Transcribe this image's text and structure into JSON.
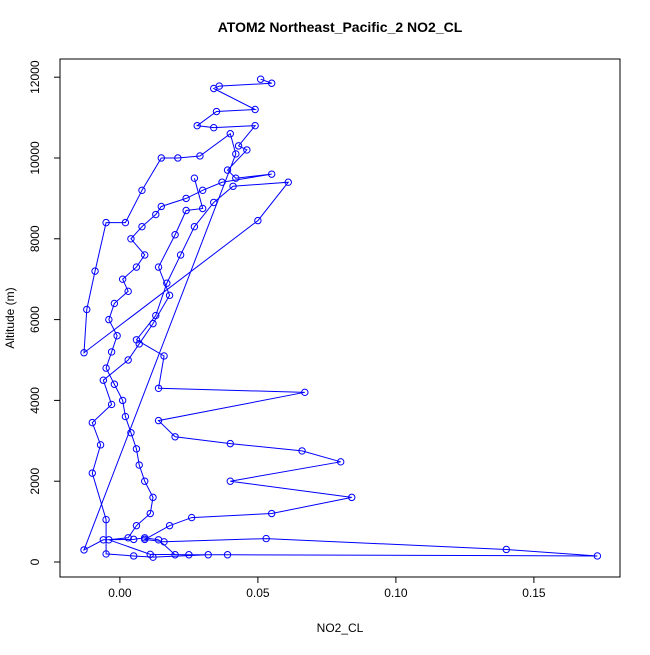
{
  "chart_data": {
    "type": "line",
    "title": "ATOM2 Northeast_Pacific_2 NO2_CL",
    "x_label": "NO2_CL",
    "y_label": "Altitude (m)",
    "color": "#0000ff",
    "x": [
      0.051,
      0.055,
      0.036,
      0.034,
      0.049,
      0.035,
      0.028,
      0.034,
      0.049,
      0.043,
      0.046,
      0.039,
      0.042,
      0.055,
      0.037,
      0.03,
      0.024,
      0.015,
      0.013,
      0.008,
      0.004,
      0.009,
      0.006,
      0.001,
      0.003,
      -0.002,
      -0.004,
      -0.001,
      -0.003,
      -0.005,
      -0.002,
      0.001,
      0.002,
      0.004,
      0.006,
      0.007,
      0.009,
      0.012,
      0.011,
      0.006,
      0.003,
      -0.004,
      0.011,
      0.025,
      0.039,
      0.173,
      0.14,
      0.053,
      0.016,
      0.009,
      0.018,
      0.026,
      0.055,
      0.084,
      0.04,
      0.08,
      0.066,
      0.04,
      0.02,
      0.014,
      0.067,
      0.014,
      0.016,
      0.006,
      0.013,
      0.017,
      0.022,
      0.027,
      0.034,
      0.041,
      0.061,
      0.05,
      -0.013,
      -0.012,
      -0.009,
      -0.005,
      0.002,
      0.008,
      0.015,
      0.021,
      0.029,
      0.04,
      0.042,
      -0.013,
      -0.006,
      0.005,
      0.009,
      0.014,
      0.02,
      0.032,
      0.012,
      0.005,
      -0.005,
      -0.005,
      -0.01,
      -0.007,
      -0.01,
      -0.003,
      -0.006,
      0.003,
      0.007,
      0.012,
      0.018,
      0.014,
      0.02,
      0.024,
      0.03,
      0.027
    ],
    "values": [
      11950,
      11850,
      11780,
      11720,
      11200,
      11150,
      10800,
      10750,
      10800,
      10300,
      10200,
      9700,
      9500,
      9600,
      9400,
      9200,
      9000,
      8800,
      8600,
      8300,
      8000,
      7600,
      7300,
      7000,
      6700,
      6400,
      6000,
      5600,
      5200,
      4800,
      4400,
      4000,
      3600,
      3200,
      2800,
      2400,
      2000,
      1600,
      1200,
      900,
      600,
      550,
      190,
      180,
      180,
      150,
      310,
      580,
      500,
      560,
      900,
      1100,
      1200,
      1600,
      2000,
      2480,
      2750,
      2930,
      3100,
      3500,
      4200,
      4300,
      5100,
      5500,
      6100,
      6900,
      7600,
      8300,
      8900,
      9300,
      9400,
      8450,
      5180,
      6250,
      7200,
      8400,
      8400,
      9200,
      10000,
      10000,
      10050,
      10600,
      10100,
      300,
      550,
      560,
      600,
      550,
      180,
      180,
      120,
      150,
      200,
      1050,
      2200,
      2900,
      3450,
      3900,
      4500,
      5000,
      5400,
      5900,
      6600,
      7300,
      8100,
      8700,
      8750,
      9500
    ],
    "xlim": [
      -0.0217,
      0.1812
    ],
    "ylim": [
      -371,
      12450
    ],
    "xticks": [
      {
        "value": 0,
        "label": "0.00"
      },
      {
        "value": 0.05,
        "label": "0.05"
      },
      {
        "value": 0.1,
        "label": "0.10"
      },
      {
        "value": 0.15,
        "label": "0.15"
      }
    ],
    "yticks": [
      0,
      2000,
      4000,
      6000,
      8000,
      10000,
      12000
    ]
  }
}
